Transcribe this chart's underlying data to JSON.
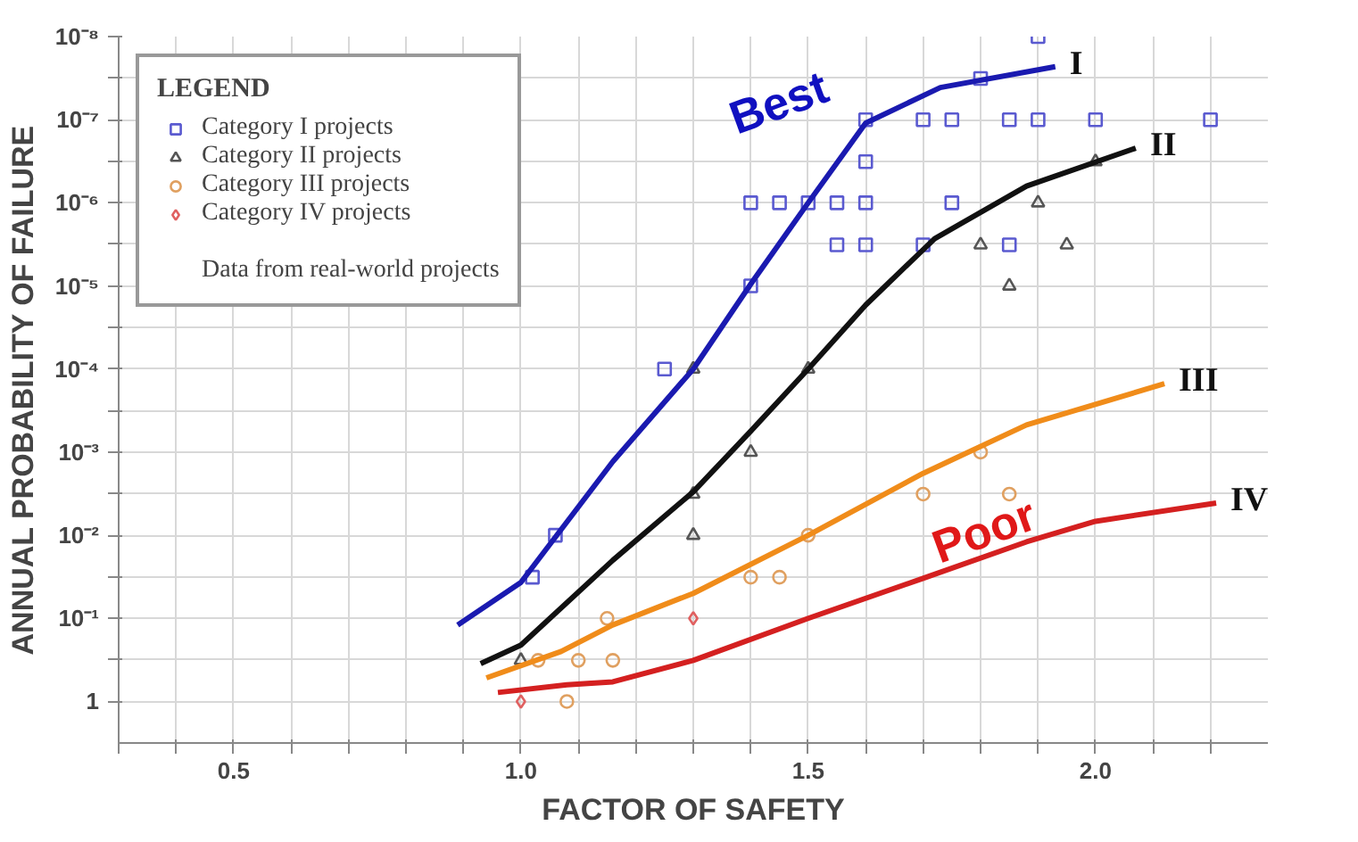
{
  "chart_data": {
    "type": "scatter",
    "xlabel": "FACTOR OF SAFETY",
    "ylabel": "ANNUAL PROBABILITY OF FAILURE",
    "legend_title": "LEGEND",
    "legend": "top left",
    "grid": true,
    "log": "y",
    "xlim": [
      0.3,
      2.3
    ],
    "ylim": [
      3.16,
      1e-08
    ],
    "xticks": [
      {
        "value": 0.3,
        "label": null
      },
      {
        "value": 0.4,
        "label": null
      },
      {
        "value": 0.5,
        "label": "0.5"
      },
      {
        "value": 0.6,
        "label": null
      },
      {
        "value": 0.7,
        "label": null
      },
      {
        "value": 0.8,
        "label": null
      },
      {
        "value": 0.9,
        "label": null
      },
      {
        "value": 1.0,
        "label": "1.0"
      },
      {
        "value": 1.1,
        "label": null
      },
      {
        "value": 1.2,
        "label": null
      },
      {
        "value": 1.3,
        "label": null
      },
      {
        "value": 1.4,
        "label": null
      },
      {
        "value": 1.5,
        "label": "1.5"
      },
      {
        "value": 1.6,
        "label": null
      },
      {
        "value": 1.7,
        "label": null
      },
      {
        "value": 1.8,
        "label": null
      },
      {
        "value": 1.9,
        "label": null
      },
      {
        "value": 2.0,
        "label": "2.0"
      },
      {
        "value": 2.1,
        "label": null
      },
      {
        "value": 2.2,
        "label": null
      }
    ],
    "yticks": [
      {
        "value": 1,
        "label": "1"
      },
      {
        "value": 0.316,
        "label": null
      },
      {
        "value": 0.1,
        "label": "10⁻¹"
      },
      {
        "value": 0.0316,
        "label": null
      },
      {
        "value": 0.01,
        "label": "10⁻²"
      },
      {
        "value": 0.00316,
        "label": null
      },
      {
        "value": 0.001,
        "label": "10⁻³"
      },
      {
        "value": 0.000316,
        "label": null
      },
      {
        "value": 0.0001,
        "label": "10⁻⁴"
      },
      {
        "value": 3.16e-05,
        "label": null
      },
      {
        "value": 1e-05,
        "label": "10⁻⁵"
      },
      {
        "value": 3.16e-06,
        "label": null
      },
      {
        "value": 1e-06,
        "label": "10⁻⁶"
      },
      {
        "value": 3.16e-07,
        "label": null
      },
      {
        "value": 1e-07,
        "label": "10⁻⁷"
      },
      {
        "value": 3.16e-08,
        "label": null
      },
      {
        "value": 1e-08,
        "label": "10⁻⁸"
      }
    ],
    "series": [
      {
        "name": "Category I projects",
        "marker": "square",
        "color": "#5a5ad0",
        "x": [
          1.9,
          1.8,
          1.6,
          1.7,
          1.75,
          1.85,
          1.9,
          2.0,
          2.2,
          1.6,
          1.4,
          1.45,
          1.5,
          1.55,
          1.6,
          1.75,
          1.55,
          1.6,
          1.7,
          1.85,
          1.4,
          1.25,
          1.02,
          1.06
        ],
        "values": [
          1e-08,
          3.2e-08,
          1e-07,
          1e-07,
          1e-07,
          1e-07,
          1e-07,
          1e-07,
          1e-07,
          3.2e-07,
          1e-06,
          1e-06,
          1e-06,
          1e-06,
          1e-06,
          1e-06,
          3.2e-06,
          3.2e-06,
          3.2e-06,
          3.2e-06,
          1e-05,
          0.0001,
          0.032,
          0.01
        ]
      },
      {
        "name": "Category II projects",
        "marker": "triangle",
        "color": "#555555",
        "x": [
          1.3,
          1.5,
          2.0,
          1.9,
          1.8,
          1.95,
          1.85,
          1.4,
          1.3,
          1.3,
          1.0
        ],
        "values": [
          0.0001,
          0.0001,
          3.2e-07,
          1e-06,
          3.2e-06,
          3.2e-06,
          1e-05,
          0.001,
          0.0032,
          0.01,
          0.32
        ]
      },
      {
        "name": "Category III projects",
        "marker": "circle",
        "color": "#e0a060",
        "x": [
          1.8,
          1.7,
          1.85,
          1.5,
          1.4,
          1.45,
          1.16,
          1.15,
          1.1,
          1.08,
          1.03
        ],
        "values": [
          0.001,
          0.0032,
          0.0032,
          0.01,
          0.032,
          0.032,
          0.32,
          0.1,
          0.32,
          1,
          0.32
        ]
      },
      {
        "name": "Category IV projects",
        "marker": "diamond",
        "color": "#e06060",
        "x": [
          1.3,
          1.0
        ],
        "values": [
          0.1,
          1
        ]
      },
      {
        "name": "I",
        "type": "line",
        "color": "#1a1ab0",
        "x": [
          0.89,
          1.0,
          1.16,
          1.3,
          1.4,
          1.5,
          1.6,
          1.73,
          1.93
        ],
        "values": [
          0.12,
          0.037,
          0.0013,
          0.0001,
          9.5e-06,
          1e-06,
          1.1e-07,
          4.1e-08,
          2.3e-08
        ]
      },
      {
        "name": "II",
        "type": "line",
        "color": "#111111",
        "x": [
          0.93,
          1.0,
          1.16,
          1.3,
          1.4,
          1.5,
          1.6,
          1.72,
          1.88,
          2.07
        ],
        "values": [
          0.35,
          0.21,
          0.02,
          0.003,
          0.00056,
          0.0001,
          1.7e-05,
          2.7e-06,
          6.3e-07,
          2.2e-07
        ]
      },
      {
        "name": "III",
        "type": "line",
        "color": "#f08c1a",
        "x": [
          0.94,
          1.07,
          1.16,
          1.3,
          1.5,
          1.7,
          1.88,
          2.12
        ],
        "values": [
          0.52,
          0.25,
          0.12,
          0.05,
          0.01,
          0.0018,
          0.00047,
          0.00015
        ]
      },
      {
        "name": "IV",
        "type": "line",
        "color": "#d42020",
        "x": [
          0.96,
          1.08,
          1.16,
          1.3,
          1.5,
          1.7,
          1.88,
          2.0,
          2.21
        ],
        "values": [
          0.78,
          0.63,
          0.58,
          0.32,
          0.1,
          0.033,
          0.012,
          0.0068,
          0.0041
        ]
      }
    ],
    "annotations": [
      "Data from real-world projects",
      "Best",
      "Poor"
    ]
  }
}
